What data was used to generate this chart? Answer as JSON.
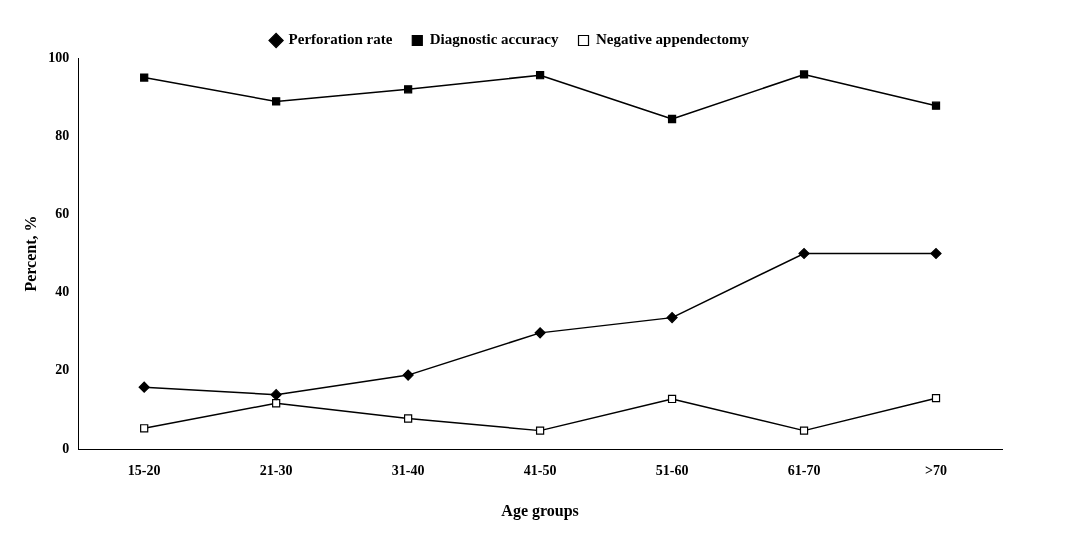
{
  "chart_data": {
    "type": "line",
    "xlabel": "Age groups",
    "ylabel": "Percent, %",
    "categories": [
      "15-20",
      "21-30",
      "31-40",
      "41-50",
      "51-60",
      "61-70",
      ">70"
    ],
    "series": [
      {
        "name": "Perforation rate",
        "color": "#000000",
        "marker": "diamond",
        "values": [
          15.8,
          13.9,
          18.9,
          29.7,
          33.6,
          50,
          50
        ]
      },
      {
        "name": "Diagnostic accuracy",
        "color": "#000000",
        "marker": "square",
        "values": [
          95,
          88.9,
          92,
          95.6,
          84.4,
          95.8,
          87.8
        ]
      },
      {
        "name": "Negative appendectomy",
        "color": "#000000",
        "marker": "square-open",
        "values": [
          5.3,
          11.7,
          7.8,
          4.7,
          12.8,
          4.7,
          13
        ]
      }
    ],
    "ylim": [
      0,
      100
    ],
    "yticks": [
      0,
      20,
      40,
      60,
      80,
      100
    ],
    "grid": false,
    "legend": "top"
  }
}
